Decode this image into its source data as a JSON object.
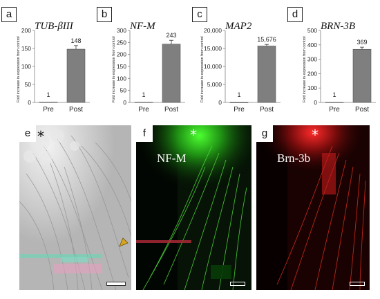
{
  "chart_data": [
    {
      "panel": "a",
      "type": "bar",
      "title": "TUB-βIII",
      "ylabel": "Fold increase in expression from control",
      "categories": [
        "Pre",
        "Post"
      ],
      "values": [
        1,
        148
      ],
      "value_labels": [
        "1",
        "148"
      ],
      "error": [
        0,
        10
      ],
      "ylim": [
        0,
        200
      ],
      "yticks": [
        0,
        50,
        100,
        150,
        200
      ],
      "ytick_labels": [
        "0",
        "50",
        "100",
        "150",
        "200"
      ]
    },
    {
      "panel": "b",
      "type": "bar",
      "title": "NF-M",
      "ylabel": "Fold increase in expression from control",
      "categories": [
        "Pre",
        "Post"
      ],
      "values": [
        1,
        243
      ],
      "value_labels": [
        "1",
        "243"
      ],
      "error": [
        0,
        16
      ],
      "ylim": [
        0,
        300
      ],
      "yticks": [
        0,
        50,
        100,
        150,
        200,
        250,
        300
      ],
      "ytick_labels": [
        "0",
        "50",
        "100",
        "150",
        "200",
        "250",
        "300"
      ]
    },
    {
      "panel": "c",
      "type": "bar",
      "title": "MAP2",
      "ylabel": "Fold increase in expression from control",
      "categories": [
        "Pre",
        "Post"
      ],
      "values": [
        1,
        15676
      ],
      "value_labels": [
        "1",
        "15,676"
      ],
      "error": [
        0,
        450
      ],
      "ylim": [
        0,
        20000
      ],
      "yticks": [
        0,
        5000,
        10000,
        15000,
        20000
      ],
      "ytick_labels": [
        "0",
        "5,000",
        "10,000",
        "15,000",
        "20,000"
      ]
    },
    {
      "panel": "d",
      "type": "bar",
      "title": "BRN-3B",
      "ylabel": "Fold increase in expression from control",
      "categories": [
        "Pre",
        "Post"
      ],
      "values": [
        1,
        369
      ],
      "value_labels": [
        "1",
        "369"
      ],
      "error": [
        0,
        15
      ],
      "ylim": [
        0,
        500
      ],
      "yticks": [
        0,
        100,
        200,
        300,
        400,
        500
      ],
      "ytick_labels": [
        "0",
        "100",
        "200",
        "300",
        "400",
        "500"
      ]
    }
  ],
  "images": {
    "e": {
      "letter": "e",
      "star": "*"
    },
    "f": {
      "letter": "f",
      "star": "*",
      "label": "NF-M"
    },
    "g": {
      "letter": "g",
      "star": "*",
      "label": "Brn-3b"
    }
  },
  "colors": {
    "bar": "#7f7f7f",
    "axis": "#7f7f7f",
    "text": "#222222",
    "green": "#3ddc2a",
    "red": "#d8231c",
    "phase": "#bdbdbd"
  }
}
